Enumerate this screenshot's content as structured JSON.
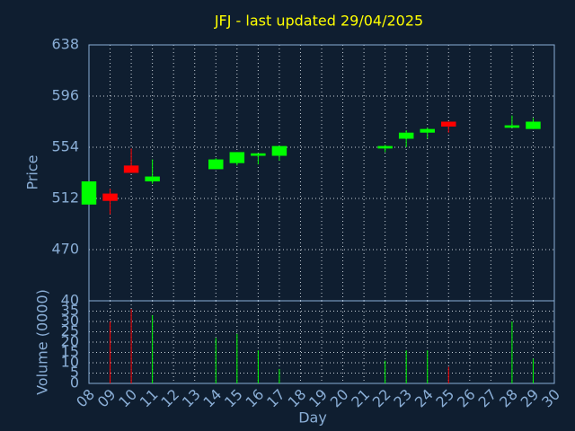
{
  "chart_data": {
    "type": "candlestick",
    "title": "JFJ - last updated 29/04/2025",
    "ylabel": "Price",
    "y2label": "Volume (0000)",
    "xlabel": "Day",
    "x": [
      8,
      9,
      10,
      11,
      14,
      15,
      16,
      17,
      22,
      23,
      24,
      25,
      28,
      29
    ],
    "open": [
      507,
      516,
      539,
      526,
      536,
      541,
      547,
      547,
      553,
      561,
      566,
      575,
      570,
      569
    ],
    "high": [
      526,
      520,
      553,
      544,
      545,
      550,
      549,
      555,
      556,
      568,
      570,
      575,
      580,
      578
    ],
    "low": [
      507,
      499,
      533,
      524,
      536,
      539,
      540,
      543,
      550,
      554,
      561,
      566,
      570,
      569
    ],
    "close": [
      526,
      510,
      533,
      530,
      544,
      550,
      549,
      555,
      555,
      566,
      569,
      571,
      572,
      575
    ],
    "volume": [
      0,
      30,
      36,
      33,
      22,
      24,
      16,
      7,
      11,
      16,
      16,
      8,
      30,
      12
    ],
    "up_color": "#00ff00",
    "down_color": "#ff0000",
    "xlim": [
      8,
      30
    ],
    "xticks": [
      {
        "value": 8,
        "label": "08"
      },
      {
        "value": 9,
        "label": "09"
      },
      10,
      11,
      12,
      13,
      14,
      15,
      16,
      17,
      18,
      19,
      20,
      21,
      22,
      23,
      24,
      25,
      26,
      27,
      28,
      29,
      30
    ],
    "ylim": [
      428,
      638
    ],
    "yticks": [
      470,
      512,
      554,
      596,
      638
    ],
    "y2lim": [
      0,
      40
    ],
    "y2ticks": [
      0,
      5,
      10,
      15,
      20,
      25,
      30,
      35,
      40
    ],
    "grid": true
  }
}
